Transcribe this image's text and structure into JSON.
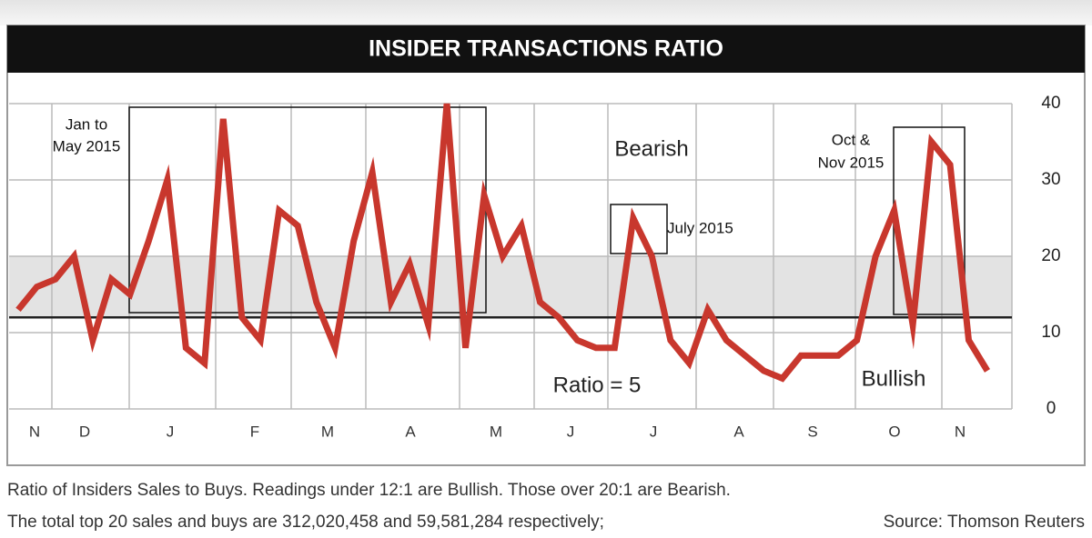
{
  "chart_data": {
    "type": "line",
    "title": "INSIDER TRANSACTIONS RATIO",
    "months": [
      "N",
      "D",
      "J",
      "F",
      "M",
      "A",
      "M",
      "J",
      "J",
      "A",
      "S",
      "O",
      "N"
    ],
    "series": [
      {
        "name": "Insider transactions ratio",
        "color": "#c8372d",
        "values": [
          13,
          16,
          17,
          20,
          9,
          17,
          15,
          22,
          30,
          8,
          6,
          38,
          12,
          9,
          26,
          24,
          14,
          8,
          22,
          31,
          14,
          19,
          11,
          40,
          8,
          28,
          20,
          24,
          14,
          12,
          9,
          8,
          8,
          25,
          20,
          9,
          6,
          13,
          9,
          7,
          5,
          4,
          7,
          7,
          7,
          9,
          20,
          26,
          11,
          35,
          32,
          9,
          5
        ]
      }
    ],
    "ylim": [
      0,
      40
    ],
    "yticks": [
      0,
      10,
      20,
      30,
      40
    ],
    "bullish_threshold": 12,
    "bearish_threshold": 20,
    "annotations": {
      "jan_may": [
        "Jan to",
        "May 2015"
      ],
      "bearish": "Bearish",
      "july": "July 2015",
      "oct_nov": [
        "Oct &",
        "Nov 2015"
      ],
      "bullish": "Bullish",
      "ratio": "Ratio = 5"
    },
    "footnote": [
      "Ratio of Insiders Sales to Buys. Readings under 12:1 are Bullish. Those over 20:1 are Bearish.",
      "The total top 20 sales and buys are 312,020,458 and 59,581,284 respectively;"
    ],
    "source": "Source: Thomson Reuters"
  }
}
